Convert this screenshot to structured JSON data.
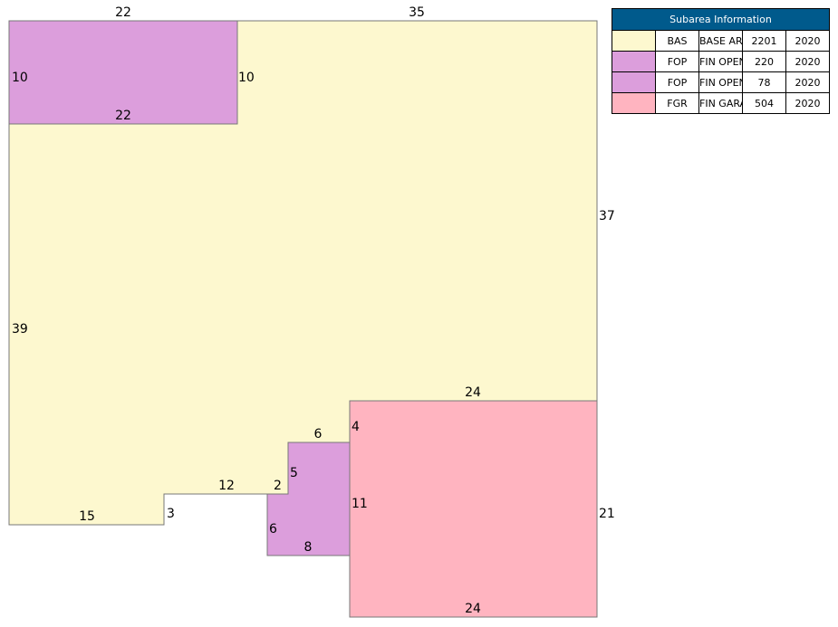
{
  "legend": {
    "title": "Subarea Information",
    "rows": [
      {
        "code": "BAS",
        "description": "BASE AREA",
        "area": "2201",
        "year": "2020",
        "color": "#fdf8cf"
      },
      {
        "code": "FOP",
        "description": "FIN OPEN PORCH",
        "area": "220",
        "year": "2020",
        "color": "#dc9edc"
      },
      {
        "code": "FOP",
        "description": "FIN OPEN PORCH",
        "area": "78",
        "year": "2020",
        "color": "#dc9edc"
      },
      {
        "code": "FGR",
        "description": "FIN GARAGE",
        "area": "504",
        "year": "2020",
        "color": "#ffb4c0"
      }
    ]
  },
  "dimensions": {
    "porch_top_width": "22",
    "porch_left_height": "10",
    "porch_right_height": "10",
    "porch_bottom_width": "22",
    "base_top_width": "35",
    "base_right_height": "37",
    "base_left_height": "39",
    "base_bottom_width": "15",
    "base_step_height": "3",
    "base_notch_width": "12",
    "base_notch_height": "2",
    "small_porch_top_width": "6",
    "small_porch_right_height": "5",
    "small_porch_left_height": "6",
    "small_porch_bottom_width": "8",
    "garage_top_width": "24",
    "garage_left_top": "4",
    "garage_left_height": "11",
    "garage_right_height": "21",
    "garage_bottom_width": "24"
  }
}
